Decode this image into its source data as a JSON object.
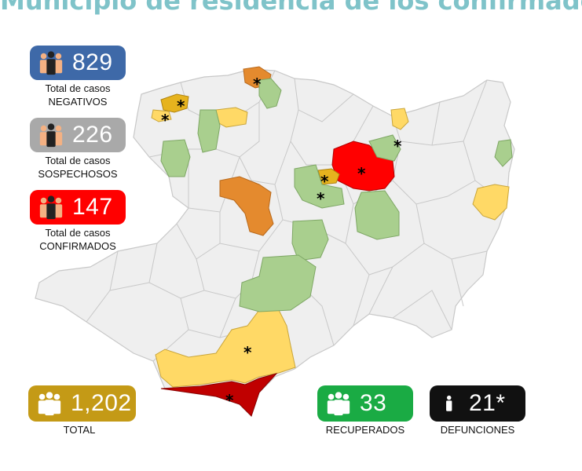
{
  "title": "Municipio de residencia de los confirmados",
  "colors": {
    "negativos": "#3e69a8",
    "sospechosos": "#a9a9a9",
    "confirmados": "#ff0000",
    "total": "#c49a16",
    "recuperados": "#1aab44",
    "defunciones": "#111111",
    "map_base": "#efefef",
    "map_border": "#c8c8c8",
    "level_green": "#a9cf8e",
    "level_lightyellow": "#ffd966",
    "level_gold": "#e6b31e",
    "level_orange": "#e48a2e",
    "level_red": "#ff0000",
    "level_darkred": "#c00000"
  },
  "stats": {
    "negativos": {
      "value": "829",
      "label_line1": "Total de casos",
      "label_line2": "NEGATIVOS",
      "icon": "people-group-icon"
    },
    "sospechosos": {
      "value": "226",
      "label_line1": "Total de casos",
      "label_line2": "SOSPECHOSOS",
      "icon": "people-group-icon"
    },
    "confirmados": {
      "value": "147",
      "label_line1": "Total de casos",
      "label_line2": "CONFIRMADOS",
      "icon": "people-group-icon"
    },
    "total": {
      "value": "1,202",
      "label": "TOTAL",
      "icon": "people-group-icon"
    },
    "recuperados": {
      "value": "33",
      "label": "RECUPERADOS",
      "icon": "people-group-icon"
    },
    "defunciones": {
      "value": "21*",
      "label": "DEFUNCIONES",
      "icon": "person-icon"
    }
  },
  "map": {
    "marker": "*"
  }
}
